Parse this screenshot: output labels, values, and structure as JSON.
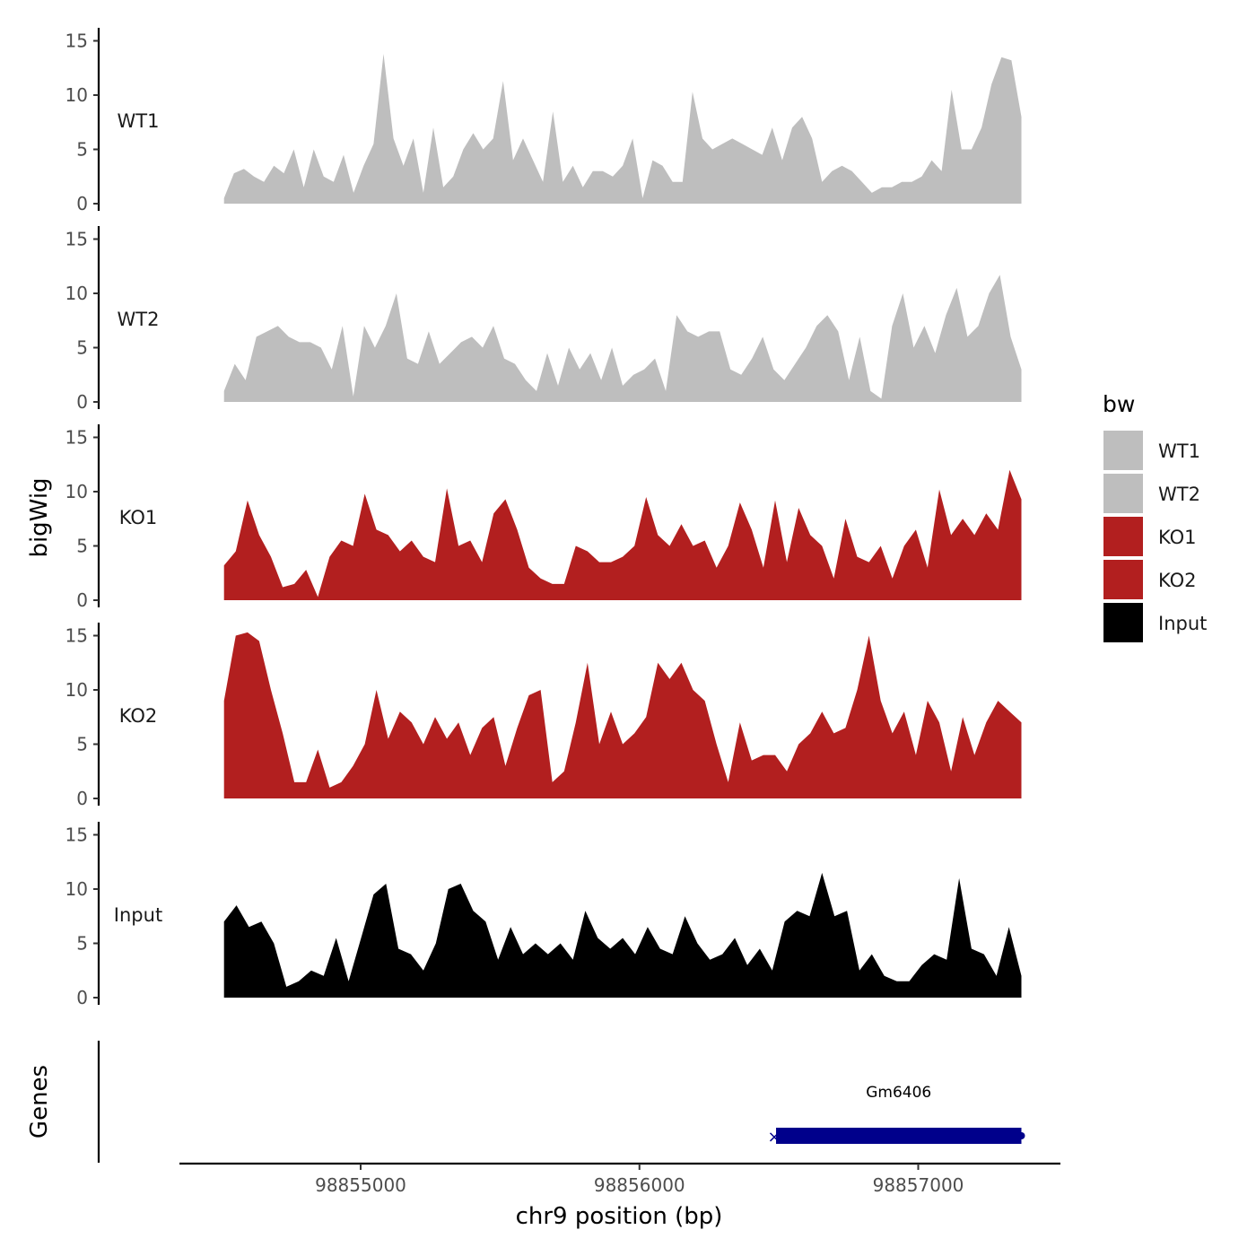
{
  "chart_data": {
    "type": "area",
    "ylabel": "bigWig",
    "xlabel": "chr9 position (bp)",
    "x_ticks": [
      98855000,
      98856000,
      98857000
    ],
    "x_tick_labels": [
      "98855000",
      "98856000",
      "98857000"
    ],
    "xlim": [
      98854350,
      98857510
    ],
    "x_start": 98854510,
    "x_step": 40,
    "ylim": [
      0,
      16
    ],
    "y_ticks": [
      0,
      5,
      10,
      15
    ],
    "y_tick_labels": [
      "0",
      "5",
      "10",
      "15"
    ],
    "legend": {
      "title": "bw",
      "placement": "right",
      "entries": [
        {
          "label": "WT1",
          "color": "#bebebe"
        },
        {
          "label": "WT2",
          "color": "#bebebe"
        },
        {
          "label": "KO1",
          "color": "#b21f1f"
        },
        {
          "label": "KO2",
          "color": "#b21f1f"
        },
        {
          "label": "Input",
          "color": "#000000"
        }
      ]
    },
    "series": [
      {
        "name": "WT1",
        "color": "#bebebe",
        "values": [
          0.5,
          2.8,
          3.2,
          2.5,
          2.0,
          3.5,
          2.8,
          5.0,
          1.5,
          5.0,
          2.5,
          2.0,
          4.5,
          1.0,
          3.5,
          5.5,
          13.8,
          6.0,
          3.5,
          6.0,
          1.0,
          7.0,
          1.5,
          2.5,
          5.0,
          6.5,
          5.0,
          6.0,
          11.3,
          4.0,
          6.0,
          4.0,
          2.0,
          8.5,
          2.0,
          3.5,
          1.5,
          3.0,
          3.0,
          2.5,
          3.5,
          6.0,
          0.5,
          4.0,
          3.5,
          2.0,
          2.0,
          10.3,
          6.0,
          5.0,
          5.5,
          6.0,
          5.5,
          5.0,
          4.5,
          7.0,
          4.0,
          7.0,
          8.0,
          6.0,
          2.0,
          3.0,
          3.5,
          3.0,
          2.0,
          1.0,
          1.5,
          1.5,
          2.0,
          2.0,
          2.5,
          4.0,
          3.0,
          10.5,
          5.0,
          5.0,
          7.0,
          11.0,
          13.5,
          13.2,
          8.0
        ]
      },
      {
        "name": "WT2",
        "color": "#bebebe",
        "values": [
          1.0,
          3.5,
          2.0,
          6.0,
          6.5,
          7.0,
          6.0,
          5.5,
          5.5,
          5.0,
          3.0,
          7.0,
          0.5,
          7.0,
          5.0,
          7.0,
          10.0,
          4.0,
          3.5,
          6.5,
          3.5,
          4.5,
          5.5,
          6.0,
          5.0,
          7.0,
          4.0,
          3.5,
          2.0,
          1.0,
          4.5,
          1.5,
          5.0,
          3.0,
          4.5,
          2.0,
          5.0,
          1.5,
          2.5,
          3.0,
          4.0,
          1.0,
          8.0,
          6.5,
          6.0,
          6.5,
          6.5,
          3.0,
          2.5,
          4.0,
          6.0,
          3.0,
          2.0,
          3.5,
          5.0,
          7.0,
          8.0,
          6.5,
          2.0,
          6.0,
          1.0,
          0.3,
          7.0,
          10.0,
          5.0,
          7.0,
          4.5,
          8.0,
          10.5,
          6.0,
          7.0,
          10.0,
          11.7,
          6.0,
          3.0
        ]
      },
      {
        "name": "KO1",
        "color": "#b21f1f",
        "values": [
          3.2,
          4.5,
          9.2,
          6.0,
          4.0,
          1.2,
          1.5,
          2.8,
          0.3,
          4.0,
          5.5,
          5.0,
          9.8,
          6.5,
          6.0,
          4.5,
          5.5,
          4.0,
          3.5,
          10.3,
          5.0,
          5.5,
          3.5,
          8.0,
          9.3,
          6.5,
          3.0,
          2.0,
          1.5,
          1.5,
          5.0,
          4.5,
          3.5,
          3.5,
          4.0,
          5.0,
          9.5,
          6.0,
          5.0,
          7.0,
          5.0,
          5.5,
          3.0,
          5.0,
          9.0,
          6.5,
          3.0,
          9.2,
          3.5,
          8.5,
          6.0,
          5.0,
          2.0,
          7.5,
          4.0,
          3.5,
          5.0,
          2.0,
          5.0,
          6.5,
          3.0,
          10.2,
          6.0,
          7.5,
          6.0,
          8.0,
          6.5,
          12.0,
          9.3
        ]
      },
      {
        "name": "KO2",
        "color": "#b21f1f",
        "values": [
          9.0,
          15.0,
          15.3,
          14.5,
          10.0,
          6.0,
          1.5,
          1.5,
          4.5,
          1.0,
          1.5,
          3.0,
          5.0,
          10.0,
          5.5,
          8.0,
          7.0,
          5.0,
          7.5,
          5.5,
          7.0,
          4.0,
          6.5,
          7.5,
          3.0,
          6.5,
          9.5,
          10.0,
          1.5,
          2.5,
          7.0,
          12.5,
          5.0,
          8.0,
          5.0,
          6.0,
          7.5,
          12.5,
          11.0,
          12.5,
          10.0,
          9.0,
          5.0,
          1.5,
          7.0,
          3.5,
          4.0,
          4.0,
          2.5,
          5.0,
          6.0,
          8.0,
          6.0,
          6.5,
          10.0,
          15.0,
          9.0,
          6.0,
          8.0,
          4.0,
          9.0,
          7.0,
          2.5,
          7.5,
          4.0,
          7.0,
          9.0,
          8.0,
          7.0
        ]
      },
      {
        "name": "Input",
        "color": "#000000",
        "values": [
          7.0,
          8.5,
          6.5,
          7.0,
          5.0,
          1.0,
          1.5,
          2.5,
          2.0,
          5.5,
          1.5,
          5.5,
          9.5,
          10.5,
          4.5,
          4.0,
          2.5,
          5.0,
          10.0,
          10.5,
          8.0,
          7.0,
          3.5,
          6.5,
          4.0,
          5.0,
          4.0,
          5.0,
          3.5,
          8.0,
          5.5,
          4.5,
          5.5,
          4.0,
          6.5,
          4.5,
          4.0,
          7.5,
          5.0,
          3.5,
          4.0,
          5.5,
          3.0,
          4.5,
          2.5,
          7.0,
          8.0,
          7.5,
          11.5,
          7.5,
          8.0,
          2.5,
          4.0,
          2.0,
          1.5,
          1.5,
          3.0,
          4.0,
          3.5,
          11.0,
          4.5,
          4.0,
          2.0,
          6.5,
          2.0
        ]
      }
    ],
    "genes_track": {
      "label": "Genes",
      "genes": [
        {
          "name": "Gm6406",
          "start": 98856490,
          "end": 98857370,
          "strand": "-",
          "color": "#00008b"
        }
      ]
    }
  }
}
